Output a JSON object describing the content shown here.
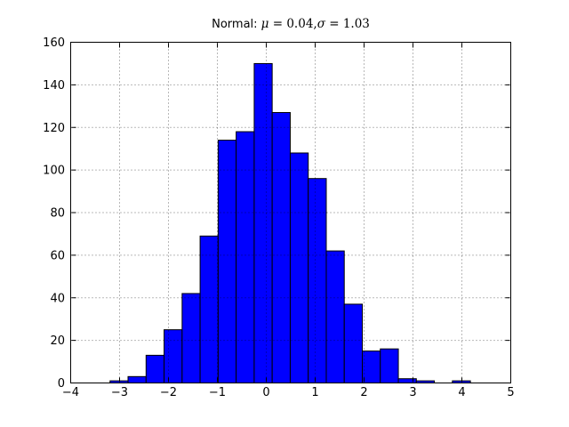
{
  "figure": {
    "background": "#ffffff",
    "title": {
      "full": "Normal: μ = 0.04,σ = 1.03",
      "prefix": "Normal: ",
      "mu_symbol": "μ",
      "mu_value": " = 0.04,",
      "sigma_symbol": "σ",
      "sigma_value": " = 1.03"
    }
  },
  "chart_data": {
    "type": "bar",
    "subtype": "histogram",
    "title": "Normal: μ = 0.04,σ = 1.03",
    "xlabel": "",
    "ylabel": "",
    "xlim": [
      -4,
      5
    ],
    "ylim": [
      0,
      160
    ],
    "grid": true,
    "grid_style": "dotted",
    "legend": "none",
    "background_color": "#ffffff",
    "bar_color": "#0000ff",
    "bar_edge_color": "#000000",
    "axis_color": "#000000",
    "x_ticks": [
      -4,
      -3,
      -2,
      -1,
      0,
      1,
      2,
      3,
      4,
      5
    ],
    "x_tick_labels": [
      "−4",
      "−3",
      "−2",
      "−1",
      "0",
      "1",
      "2",
      "3",
      "4",
      "5"
    ],
    "y_ticks": [
      0,
      20,
      40,
      60,
      80,
      100,
      120,
      140,
      160
    ],
    "y_tick_labels": [
      "0",
      "20",
      "40",
      "60",
      "80",
      "100",
      "120",
      "140",
      "160"
    ],
    "bin_edges": [
      -3.195,
      -2.827,
      -2.458,
      -2.09,
      -1.721,
      -1.353,
      -0.984,
      -0.616,
      -0.247,
      0.121,
      0.49,
      0.858,
      1.227,
      1.595,
      1.964,
      2.332,
      2.701,
      3.069,
      3.438,
      3.806,
      4.175
    ],
    "counts": [
      1,
      3,
      13,
      25,
      42,
      69,
      114,
      118,
      150,
      127,
      108,
      96,
      62,
      37,
      15,
      16,
      2,
      1,
      0,
      1
    ]
  }
}
